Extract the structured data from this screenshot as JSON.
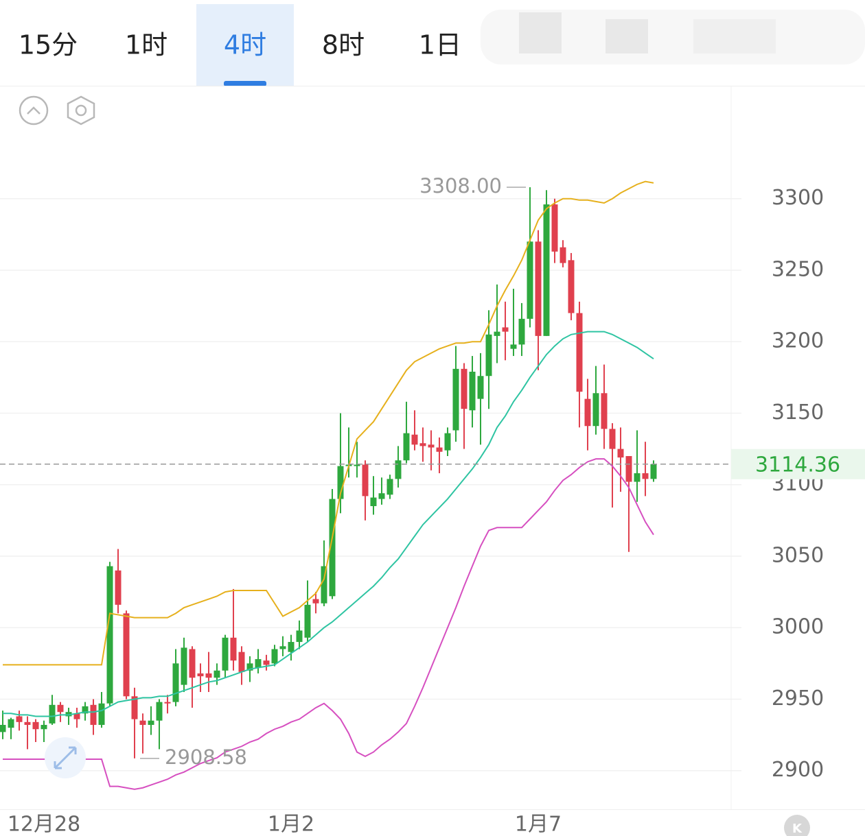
{
  "tabs": {
    "items": [
      "15分",
      "1时",
      "4时",
      "8时",
      "1日"
    ],
    "active": 2
  },
  "chart_data": {
    "type": "candlestick",
    "categories": [
      null,
      null,
      null,
      null,
      null,
      "12月28",
      null,
      null,
      null,
      null,
      null,
      null,
      null,
      null,
      null,
      null,
      null,
      null,
      null,
      null,
      null,
      null,
      null,
      null,
      null,
      null,
      null,
      null,
      null,
      null,
      null,
      null,
      null,
      null,
      null,
      "1月2",
      null,
      null,
      null,
      null,
      null,
      null,
      null,
      null,
      null,
      null,
      null,
      null,
      null,
      null,
      null,
      null,
      null,
      null,
      null,
      null,
      null,
      null,
      null,
      null,
      null,
      null,
      null,
      null,
      null,
      "1月7",
      null,
      null,
      null,
      null,
      null,
      null,
      null,
      null,
      null,
      null,
      null,
      null,
      null,
      null
    ],
    "open": [
      2927,
      2930,
      2938,
      2934,
      2934,
      2929,
      2933,
      2946,
      2938,
      2940,
      2940,
      2946,
      2932,
      2947,
      3040,
      3010,
      2952,
      2935,
      2932,
      2935,
      2948,
      2948,
      2960,
      2985,
      2968,
      2968,
      2965,
      2970,
      2993,
      2983,
      2970,
      2972,
      2977,
      2975,
      2985,
      2983,
      2990,
      2993,
      3020,
      3017,
      3022,
      3090,
      3113,
      3113,
      3114,
      3085,
      3090,
      3093,
      3104,
      3117,
      3135,
      3129,
      3128,
      3126,
      3124,
      3138,
      3181,
      3152,
      3160,
      3176,
      3204,
      3210,
      3195,
      3198,
      3216,
      3270,
      3204,
      3296,
      3266,
      3257,
      3220,
      3160,
      3141,
      3164,
      3139,
      3125,
      3120,
      3102,
      3108,
      3104
    ],
    "high": [
      2942,
      2937,
      2942,
      2938,
      2936,
      2935,
      2953,
      2948,
      2944,
      2944,
      2948,
      2950,
      2955,
      3046,
      3055,
      3012,
      2958,
      2940,
      2945,
      2950,
      2953,
      2985,
      2993,
      2987,
      2975,
      2983,
      2975,
      2995,
      3027,
      2987,
      2980,
      2985,
      2981,
      2988,
      2994,
      2995,
      3005,
      3033,
      3025,
      3061,
      3097,
      3150,
      3140,
      3130,
      3117,
      3106,
      3105,
      3107,
      3127,
      3158,
      3152,
      3140,
      3138,
      3133,
      3140,
      3197,
      3185,
      3190,
      3192,
      3222,
      3240,
      3228,
      3237,
      3227,
      3308,
      3278,
      3306,
      3300,
      3271,
      3262,
      3228,
      3174,
      3183,
      3184,
      3143,
      3140,
      3120,
      3138,
      3130,
      3117
    ],
    "low": [
      2922,
      2922,
      2928,
      2915,
      2920,
      2920,
      2932,
      2934,
      2932,
      2930,
      2935,
      2925,
      2930,
      2945,
      3010,
      2950,
      2908.58,
      2912,
      2925,
      2915,
      2940,
      2945,
      2955,
      2944,
      2955,
      2955,
      2960,
      2965,
      2970,
      2960,
      2962,
      2968,
      2970,
      2973,
      2980,
      2977,
      2985,
      2990,
      3010,
      3015,
      3020,
      3080,
      3105,
      3105,
      3075,
      3079,
      3086,
      3090,
      3098,
      3115,
      3124,
      3116,
      3110,
      3108,
      3120,
      3130,
      3125,
      3140,
      3128,
      3153,
      3185,
      3187,
      3190,
      3190,
      3210,
      3180,
      3204,
      3255,
      3252,
      3215,
      3140,
      3124,
      3135,
      3125,
      3084,
      3095,
      3053,
      3088,
      3092,
      3102
    ],
    "close": [
      2932,
      2936,
      2934,
      2932,
      2929,
      2932,
      2946,
      2941,
      2941,
      2936,
      2945,
      2932,
      2947,
      3043,
      3016,
      2952,
      2936,
      2932,
      2935,
      2948,
      2947,
      2975,
      2986,
      2965,
      2966,
      2965,
      2970,
      2993,
      2977,
      2969,
      2975,
      2978,
      2974,
      2985,
      2987,
      2990,
      2998,
      3016,
      3017,
      3043,
      3090,
      3113,
      3114,
      3114,
      3092,
      3091,
      3094,
      3104,
      3117,
      3136,
      3128,
      3127,
      3126,
      3123,
      3136,
      3181,
      3153,
      3179,
      3176,
      3205,
      3207,
      3207,
      3198,
      3216,
      3270,
      3204,
      3296,
      3263,
      3255,
      3220,
      3165,
      3141,
      3164,
      3139,
      3125,
      3119,
      3102,
      3108,
      3104,
      3114.36
    ],
    "up_color": "#2ea83e",
    "down_color": "#e0404e",
    "bands": [
      {
        "color": "#e6b01c",
        "values": [
          2974,
          2974,
          2974,
          2974,
          2974,
          2974,
          2974,
          2974,
          2974,
          2974,
          2974,
          2974,
          2974,
          3010,
          3009,
          3008,
          3007,
          3007,
          3007,
          3007,
          3007,
          3010,
          3014,
          3016,
          3018,
          3020,
          3022,
          3025,
          3026,
          3026,
          3026,
          3026,
          3026,
          3017,
          3008,
          3011,
          3014,
          3019,
          3024,
          3034,
          3063,
          3094,
          3113,
          3132,
          3138,
          3144,
          3153,
          3162,
          3171,
          3180,
          3186,
          3189,
          3192,
          3195,
          3197,
          3199,
          3199,
          3200,
          3200,
          3212,
          3225,
          3236,
          3246,
          3257,
          3271,
          3285,
          3293,
          3297,
          3300,
          3300,
          3299,
          3299,
          3298,
          3297,
          3300,
          3304,
          3307,
          3310,
          3312,
          3311
        ]
      },
      {
        "color": "#2ec4a2",
        "values": [
          2940,
          2940,
          2939,
          2939,
          2938,
          2938,
          2938,
          2939,
          2939,
          2940,
          2941,
          2941,
          2942,
          2945,
          2948,
          2949,
          2950,
          2951,
          2951,
          2952,
          2952,
          2954,
          2956,
          2958,
          2960,
          2962,
          2963,
          2965,
          2967,
          2969,
          2971,
          2972,
          2973,
          2974,
          2978,
          2982,
          2986,
          2990,
          2995,
          3000,
          3004,
          3009,
          3014,
          3019,
          3024,
          3029,
          3035,
          3042,
          3048,
          3056,
          3064,
          3072,
          3078,
          3084,
          3090,
          3097,
          3104,
          3111,
          3119,
          3128,
          3140,
          3148,
          3158,
          3166,
          3175,
          3183,
          3191,
          3197,
          3202,
          3205,
          3206,
          3207,
          3207,
          3207,
          3205,
          3202,
          3199,
          3196,
          3192,
          3188
        ]
      },
      {
        "color": "#d64fc0",
        "values": [
          2908,
          2908,
          2908,
          2908,
          2908,
          2908,
          2908,
          2908,
          2908,
          2908,
          2908,
          2908,
          2908,
          2889,
          2889,
          2888,
          2887,
          2888,
          2890,
          2892,
          2894,
          2897,
          2899,
          2902,
          2905,
          2907,
          2909,
          2913,
          2915,
          2917,
          2920,
          2922,
          2926,
          2929,
          2931,
          2934,
          2936,
          2940,
          2944,
          2947,
          2942,
          2936,
          2926,
          2913,
          2910,
          2913,
          2918,
          2922,
          2927,
          2933,
          2945,
          2958,
          2972,
          2986,
          3000,
          3014,
          3029,
          3043,
          3057,
          3068,
          3070,
          3070,
          3070,
          3070,
          3076,
          3082,
          3088,
          3096,
          3103,
          3107,
          3112,
          3116,
          3118,
          3118,
          3113,
          3106,
          3098,
          3086,
          3074,
          3065
        ]
      }
    ],
    "annotations": [
      {
        "value": 3308,
        "label": "3308.00"
      },
      {
        "value": 2908.58,
        "label": "2908.58"
      }
    ],
    "ylim": [
      2873,
      3379
    ],
    "yticks": [
      2900,
      2950,
      3000,
      3050,
      3100,
      3150,
      3200,
      3250,
      3300
    ],
    "grid": true
  }
}
